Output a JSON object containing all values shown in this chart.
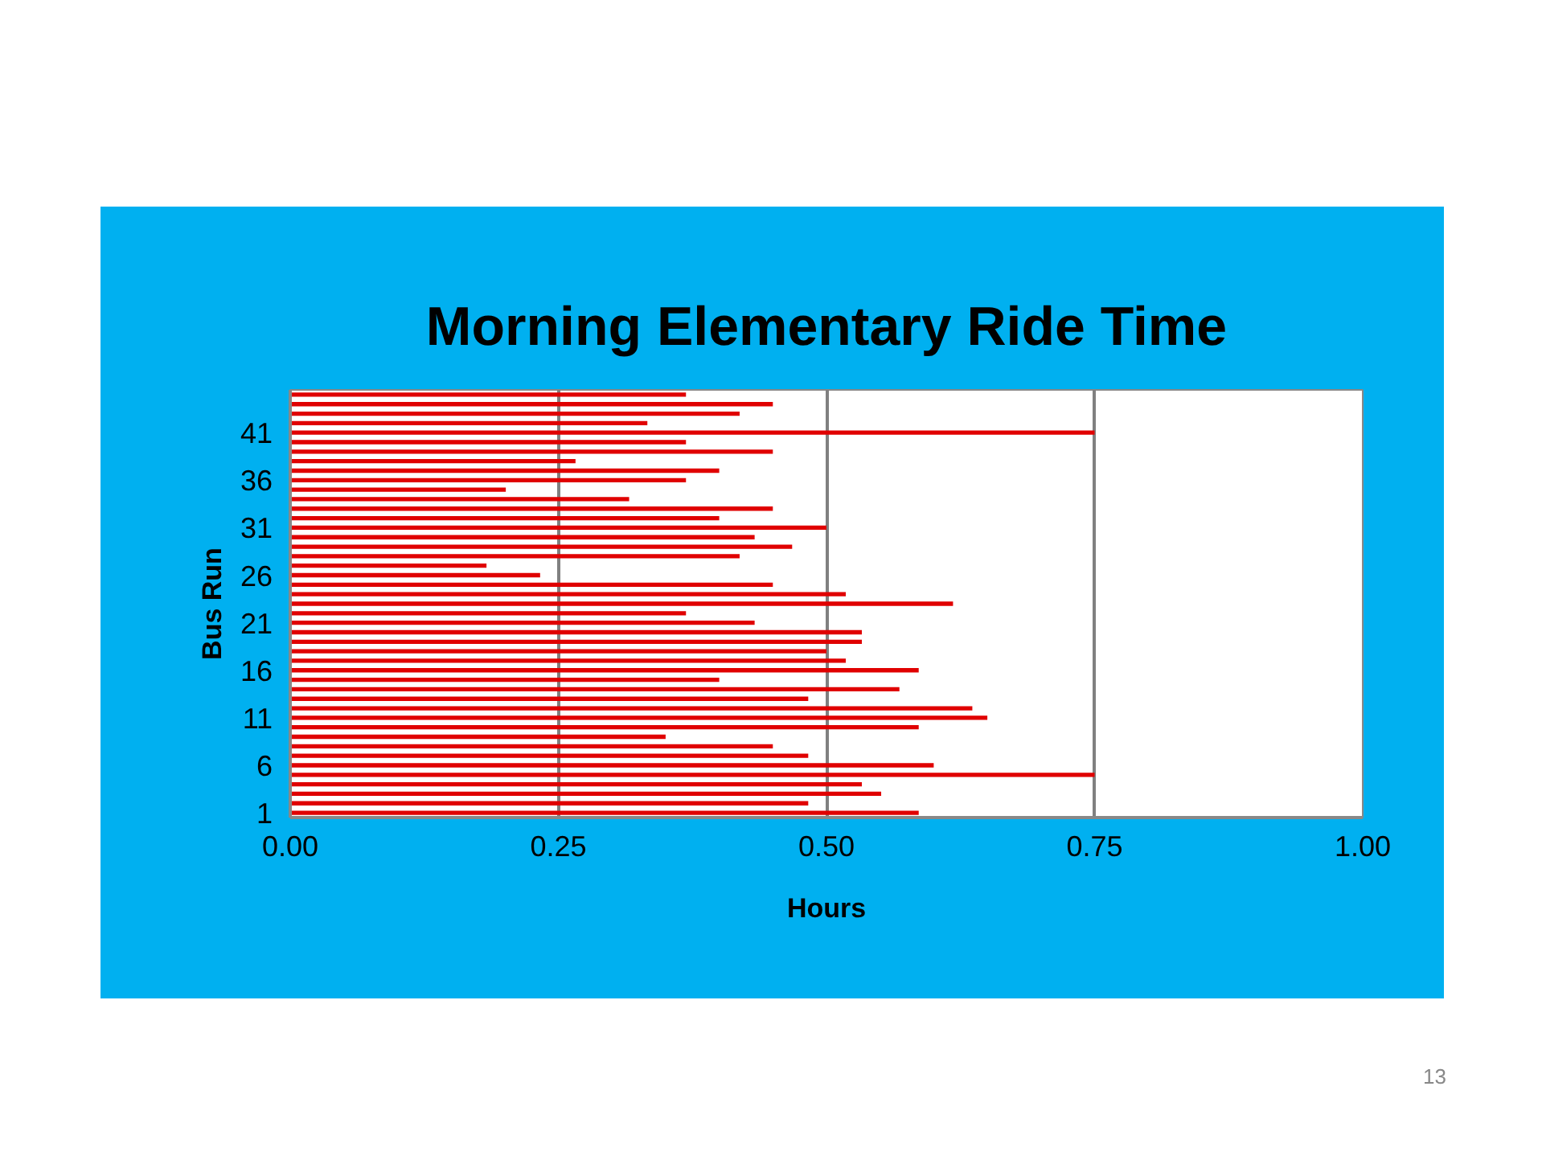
{
  "chart_data": {
    "type": "bar",
    "orientation": "horizontal",
    "title": "Morning Elementary Ride Time",
    "xlabel": "Hours",
    "ylabel": "Bus Run",
    "categories": [
      null,
      null,
      null,
      null,
      "41",
      null,
      null,
      null,
      null,
      "36",
      null,
      null,
      null,
      null,
      "31",
      null,
      null,
      null,
      null,
      "26",
      null,
      null,
      null,
      null,
      "21",
      null,
      null,
      null,
      null,
      "16",
      null,
      null,
      null,
      null,
      "11",
      null,
      null,
      null,
      null,
      "6",
      null,
      null,
      null,
      null,
      "1"
    ],
    "values": [
      0.369,
      0.45,
      0.419,
      0.333,
      0.75,
      0.369,
      0.45,
      0.266,
      0.4,
      0.369,
      0.201,
      0.316,
      0.45,
      0.4,
      0.5,
      0.433,
      0.468,
      0.419,
      0.183,
      0.233,
      0.45,
      0.518,
      0.618,
      0.369,
      0.433,
      0.533,
      0.533,
      0.5,
      0.518,
      0.586,
      0.4,
      0.568,
      0.483,
      0.636,
      0.65,
      0.586,
      0.35,
      0.45,
      0.483,
      0.6,
      0.75,
      0.533,
      0.551,
      0.483,
      0.586
    ],
    "color": "#e00000",
    "xlim": [
      0,
      1
    ],
    "xticks": [
      {
        "value": 0,
        "label": "0.00"
      },
      {
        "value": 0.25,
        "label": "0.25"
      },
      {
        "value": 0.5,
        "label": "0.50"
      },
      {
        "value": 0.75,
        "label": "0.75"
      },
      {
        "value": 1,
        "label": "1.00"
      }
    ],
    "grid": "x",
    "annotations": [
      "13"
    ]
  }
}
